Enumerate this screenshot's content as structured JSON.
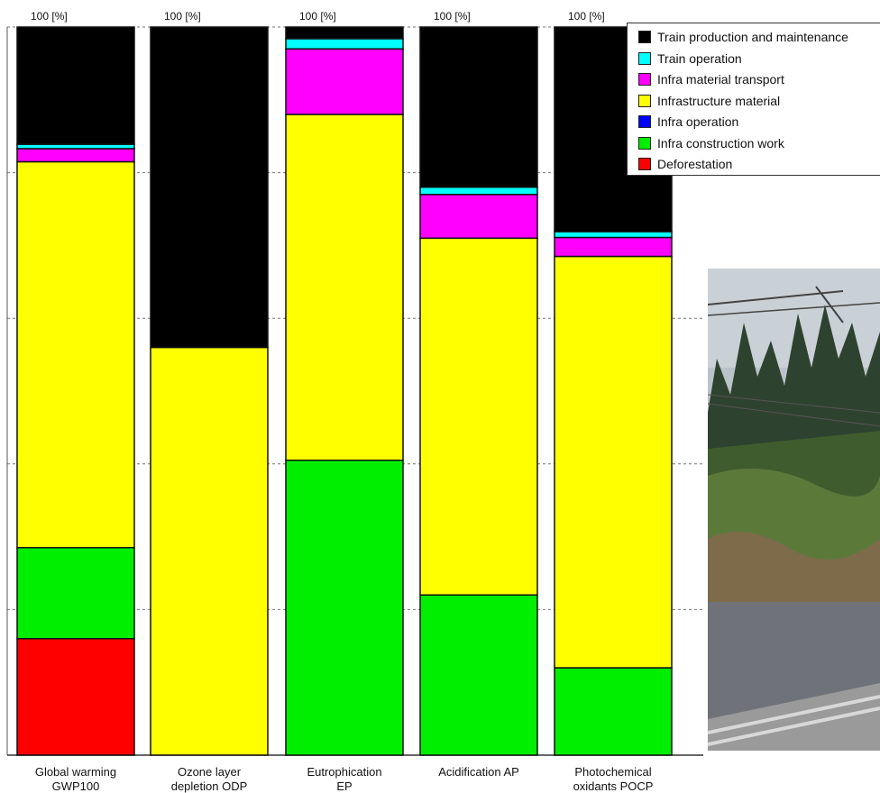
{
  "chart_data": {
    "type": "bar",
    "stacked": true,
    "normalized_percent": true,
    "categories": [
      [
        "Global warming",
        "GWP100"
      ],
      [
        "Ozone layer",
        "depletion ODP"
      ],
      [
        "Eutrophication",
        "EP"
      ],
      [
        "Acidification AP"
      ],
      [
        "Photochemical",
        "oxidants POCP"
      ]
    ],
    "top_labels": [
      "100 [%]",
      "100 [%]",
      "100 [%]",
      "100 [%]",
      "100 [%]"
    ],
    "ylim": [
      0,
      100
    ],
    "legend_position": "top-right",
    "series": [
      {
        "name": "Deforestation",
        "color": "#ff0000",
        "values": [
          16,
          0,
          0,
          0,
          0
        ]
      },
      {
        "name": "Infra construction work",
        "color": "#00ee00",
        "values": [
          12.5,
          0,
          40.5,
          22,
          12
        ]
      },
      {
        "name": "Infra operation",
        "color": "#0000ff",
        "values": [
          0,
          0,
          0,
          0,
          0
        ]
      },
      {
        "name": "Infrastructure material",
        "color": "#ffff00",
        "values": [
          53,
          56,
          47.5,
          49,
          56.5
        ]
      },
      {
        "name": "Infra material transport",
        "color": "#ff00ff",
        "values": [
          1.8,
          0,
          9,
          6,
          2.6
        ]
      },
      {
        "name": "Train operation",
        "color": "#00ffff",
        "values": [
          0.6,
          0,
          1.4,
          1,
          0.8
        ]
      },
      {
        "name": "Train production and maintenance",
        "color": "#000000",
        "values": [
          16.1,
          44,
          1.6,
          22,
          28.1
        ]
      }
    ]
  },
  "legend_order": [
    "Train production and maintenance",
    "Train operation",
    "Infra material transport",
    "Infrastructure material",
    "Infra operation",
    "Infra construction work",
    "Deforestation"
  ]
}
